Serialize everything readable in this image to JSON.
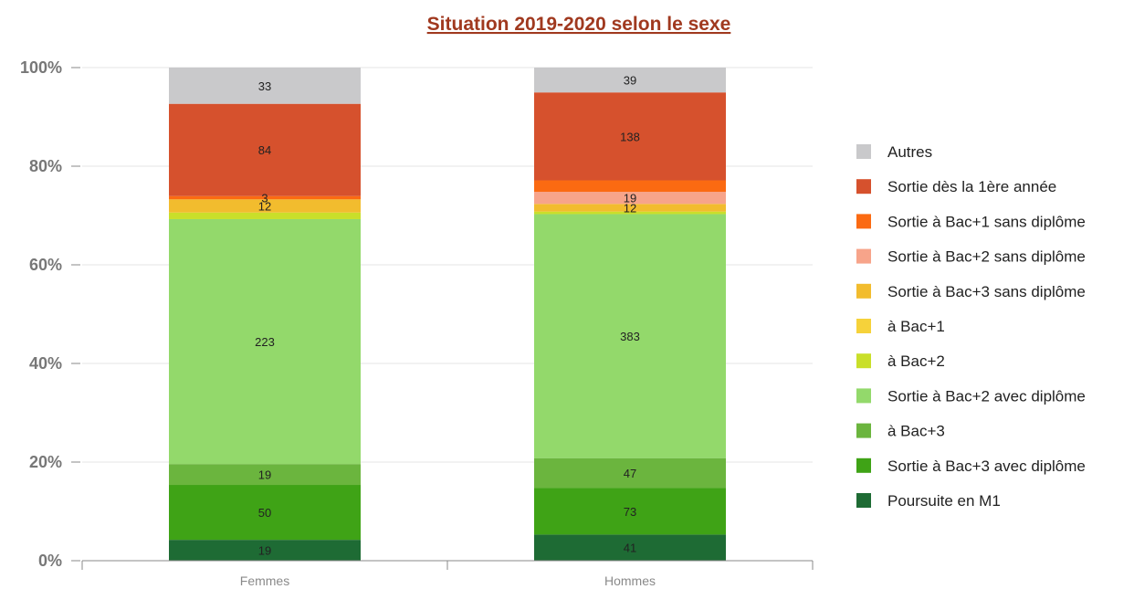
{
  "chart_data": {
    "type": "bar",
    "stacked": "percent",
    "title": "Situation 2019-2020 selon le sexe",
    "xlabel": "",
    "ylabel": "",
    "ylim": [
      0,
      100
    ],
    "yticks": [
      "0%",
      "20%",
      "40%",
      "60%",
      "80%",
      "100%"
    ],
    "grid": true,
    "legend_position": "right",
    "categories": [
      "Femmes",
      "Hommes"
    ],
    "series": [
      {
        "name": "Poursuite en M1",
        "color": "#1e6b34",
        "values": [
          19,
          41
        ],
        "labels": [
          "19",
          "41"
        ]
      },
      {
        "name": "Sortie à Bac+3 avec diplôme",
        "color": "#3fa316",
        "values": [
          50,
          73
        ],
        "labels": [
          "50",
          "73"
        ]
      },
      {
        "name": "à Bac+3",
        "color": "#6bb53e",
        "values": [
          19,
          47
        ],
        "labels": [
          "19",
          "47"
        ]
      },
      {
        "name": "Sortie à Bac+2 avec diplôme",
        "color": "#93d96b",
        "values": [
          223,
          383
        ],
        "labels": [
          "223",
          "383"
        ]
      },
      {
        "name": "à Bac+2",
        "color": "#c9df2a",
        "values": [
          6,
          4
        ],
        "labels": [
          "",
          ""
        ]
      },
      {
        "name": "à Bac+1",
        "color": "#f6d23a",
        "values": [
          0,
          0
        ],
        "labels": [
          "",
          ""
        ]
      },
      {
        "name": "Sortie à Bac+3 sans diplôme",
        "color": "#f2bc2e",
        "values": [
          12,
          12
        ],
        "labels": [
          "12",
          "12"
        ]
      },
      {
        "name": "Sortie à Bac+2 sans diplôme",
        "color": "#f7a48a",
        "values": [
          0,
          19
        ],
        "labels": [
          "",
          "19"
        ]
      },
      {
        "name": "Sortie à Bac+1 sans diplôme",
        "color": "#fb6a12",
        "values": [
          3,
          18
        ],
        "labels": [
          "3",
          ""
        ]
      },
      {
        "name": "Sortie dès la 1ère année",
        "color": "#d6512d",
        "values": [
          84,
          138
        ],
        "labels": [
          "84",
          "138"
        ]
      },
      {
        "name": "Autres",
        "color": "#c9c9cb",
        "values": [
          33,
          39
        ],
        "labels": [
          "33",
          "39"
        ]
      }
    ]
  }
}
